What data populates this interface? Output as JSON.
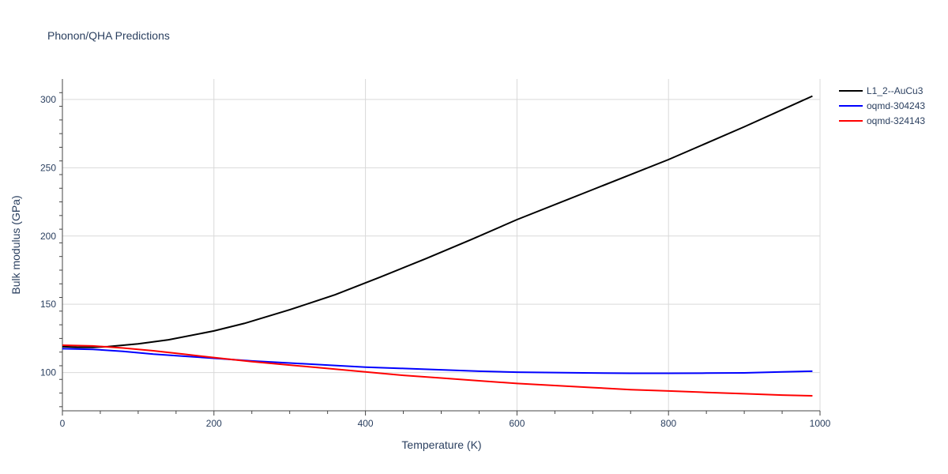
{
  "chart_data": {
    "type": "line",
    "title": "Phonon/QHA Predictions",
    "xlabel": "Temperature (K)",
    "ylabel": "Bulk modulus (GPa)",
    "xlim": [
      0,
      1000
    ],
    "ylim": [
      72,
      315
    ],
    "xticks": [
      0,
      200,
      400,
      600,
      800,
      1000
    ],
    "yticks": [
      100,
      150,
      200,
      250,
      300
    ],
    "grid": true,
    "legend_position": "top-right",
    "series": [
      {
        "name": "L1_2--AuCu3",
        "color": "#000000",
        "x": [
          0,
          20,
          40,
          60,
          80,
          100,
          140,
          200,
          240,
          300,
          360,
          420,
          480,
          540,
          600,
          700,
          800,
          900,
          990
        ],
        "y": [
          119,
          118.5,
          118.5,
          119,
          120,
          121,
          124,
          130.5,
          136,
          146,
          157,
          170,
          183.5,
          197.5,
          212,
          234,
          256,
          280,
          302.5
        ]
      },
      {
        "name": "oqmd-304243",
        "color": "#0000ff",
        "x": [
          0,
          40,
          80,
          120,
          160,
          200,
          250,
          300,
          350,
          400,
          450,
          500,
          550,
          600,
          650,
          700,
          750,
          800,
          850,
          900,
          950,
          990
        ],
        "y": [
          117.5,
          117,
          115.5,
          113.5,
          112,
          110.5,
          108.5,
          107,
          105.5,
          104,
          103,
          102,
          101,
          100.3,
          100,
          99.7,
          99.5,
          99.5,
          99.6,
          99.8,
          100.5,
          101
        ]
      },
      {
        "name": "oqmd-324143",
        "color": "#ff0000",
        "x": [
          0,
          40,
          80,
          120,
          160,
          200,
          250,
          300,
          350,
          400,
          450,
          500,
          550,
          600,
          650,
          700,
          750,
          800,
          850,
          900,
          950,
          990
        ],
        "y": [
          120,
          119.5,
          118,
          116,
          113.5,
          111,
          108,
          105.5,
          103,
          100.5,
          98,
          96,
          94,
          92,
          90.5,
          89,
          87.5,
          86.5,
          85.5,
          84.5,
          83.5,
          83
        ]
      }
    ]
  }
}
